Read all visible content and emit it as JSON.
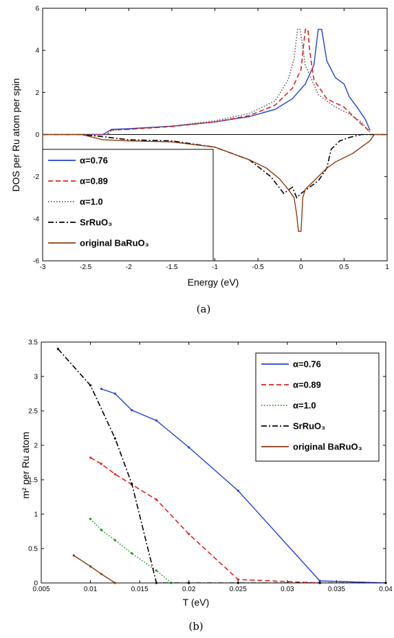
{
  "chart_data": [
    {
      "type": "line",
      "panel": "(a)",
      "xlabel": "Energy (eV)",
      "ylabel": "DOS per Ru atom per spin",
      "xlim": [
        -3,
        1
      ],
      "ylim": [
        -6,
        6
      ],
      "xticks": [
        -3,
        -2.5,
        -2,
        -1.5,
        -1,
        -0.5,
        0,
        0.5,
        1
      ],
      "xtick_labels": [
        "-3",
        "-2.5",
        "-2",
        "-1.5",
        "-1",
        "-0.5",
        "0",
        "0.5",
        "1"
      ],
      "yticks": [
        -6,
        -4,
        -2,
        0,
        2,
        4,
        6
      ],
      "ytick_labels": [
        "-6",
        "-4",
        "-2",
        "0",
        "2",
        "4",
        "6"
      ],
      "grid": false,
      "legend": "bottom-left",
      "zero_line": true,
      "series": [
        {
          "name": "α=0.76",
          "color": "#1f3fd0",
          "style": "solid",
          "x": [
            -2.55,
            -2.3,
            -2.2,
            -2.0,
            -1.5,
            -1.0,
            -0.6,
            -0.3,
            -0.1,
            0.05,
            0.15,
            0.2,
            0.24,
            0.3,
            0.4,
            0.5,
            0.56,
            0.65,
            0.75,
            0.8
          ],
          "y": [
            0,
            0,
            0.25,
            0.28,
            0.4,
            0.6,
            0.85,
            1.2,
            1.7,
            2.4,
            3.3,
            5.0,
            5.0,
            3.5,
            2.7,
            2.4,
            1.8,
            1.3,
            0.7,
            0.2
          ]
        },
        {
          "name": "α=0.89",
          "color": "#e02020",
          "style": "dashed",
          "x": [
            -2.55,
            -2.25,
            -2.2,
            -2.0,
            -1.5,
            -1.0,
            -0.6,
            -0.3,
            -0.1,
            0.0,
            0.05,
            0.08,
            0.1,
            0.15,
            0.3,
            0.5,
            0.6,
            0.7,
            0.8
          ],
          "y": [
            0,
            0,
            0.22,
            0.25,
            0.38,
            0.6,
            0.9,
            1.4,
            2.2,
            3.1,
            5.0,
            5.0,
            4.0,
            2.6,
            1.7,
            1.3,
            0.9,
            0.5,
            0.15
          ]
        },
        {
          "name": "α=1.0",
          "color": "#555555",
          "style": "dotted",
          "x": [
            -2.55,
            -2.25,
            -2.2,
            -2.0,
            -1.5,
            -1.0,
            -0.6,
            -0.3,
            -0.15,
            -0.08,
            -0.04,
            -0.01,
            0.05,
            0.2,
            0.4,
            0.55,
            0.7,
            0.8
          ],
          "y": [
            0,
            0,
            0.2,
            0.25,
            0.4,
            0.65,
            1.0,
            1.6,
            2.6,
            3.6,
            5.0,
            5.0,
            3.3,
            1.9,
            1.3,
            1.0,
            0.6,
            0.1
          ]
        },
        {
          "name": "SrRuO₃",
          "color": "#000000",
          "style": "dashdot",
          "x": [
            -3.0,
            -2.55,
            -2.3,
            -2.0,
            -1.5,
            -1.0,
            -0.6,
            -0.35,
            -0.2,
            -0.1,
            -0.05,
            0.0,
            0.1,
            0.2,
            0.3,
            0.35,
            0.4,
            0.45,
            0.55,
            0.7,
            0.8,
            1.0
          ],
          "y": [
            0,
            0,
            -0.1,
            -0.25,
            -0.3,
            -0.6,
            -1.2,
            -2.0,
            -2.8,
            -2.5,
            -3.0,
            -2.8,
            -2.5,
            -2.2,
            -1.6,
            -0.7,
            -0.5,
            -0.3,
            -0.15,
            0,
            0,
            0
          ]
        },
        {
          "name": "original BaRuO₃",
          "color": "#8b3a10",
          "style": "solid",
          "x": [
            -3.0,
            -2.55,
            -2.3,
            -2.0,
            -1.5,
            -1.0,
            -0.8,
            -0.6,
            -0.4,
            -0.25,
            -0.15,
            -0.08,
            -0.05,
            -0.03,
            0.0,
            0.02,
            0.05,
            0.15,
            0.3,
            0.4,
            0.5,
            0.6,
            0.7,
            0.8,
            0.85,
            1.0
          ],
          "y": [
            0,
            0,
            -0.25,
            -0.3,
            -0.35,
            -0.6,
            -0.9,
            -1.2,
            -1.6,
            -2.1,
            -2.6,
            -3.0,
            -3.8,
            -4.6,
            -4.6,
            -3.0,
            -2.6,
            -2.2,
            -1.6,
            -1.3,
            -1.1,
            -0.9,
            -0.6,
            -0.3,
            0,
            0
          ]
        }
      ]
    },
    {
      "type": "line",
      "panel": "(b)",
      "xlabel": "T (eV)",
      "ylabel": "m² per Ru atom",
      "xlim": [
        0.005,
        0.04
      ],
      "ylim": [
        0,
        3.5
      ],
      "xticks": [
        0.005,
        0.01,
        0.015,
        0.02,
        0.025,
        0.03,
        0.035,
        0.04
      ],
      "xtick_labels": [
        "0.005",
        "0.01",
        "0.015",
        "0.02",
        "0.025",
        "0.03",
        "0.035",
        "0.04"
      ],
      "yticks": [
        0,
        0.5,
        1,
        1.5,
        2,
        2.5,
        3,
        3.5
      ],
      "ytick_labels": [
        "0",
        "0.5",
        "1",
        "1.5",
        "2",
        "2.5",
        "3",
        "3.5"
      ],
      "grid": false,
      "legend": "top-right",
      "series": [
        {
          "name": "α=0.76",
          "color": "#1f3fd0",
          "style": "solid",
          "x": [
            0.0111,
            0.0125,
            0.0142,
            0.0167,
            0.02,
            0.025,
            0.0333,
            0.04
          ],
          "y": [
            2.82,
            2.75,
            2.51,
            2.36,
            1.97,
            1.34,
            0.03,
            0.0
          ]
        },
        {
          "name": "α=0.89",
          "color": "#e02020",
          "style": "dashed",
          "x": [
            0.01,
            0.0111,
            0.0125,
            0.0142,
            0.0167,
            0.02,
            0.025,
            0.0333
          ],
          "y": [
            1.82,
            1.73,
            1.58,
            1.43,
            1.21,
            0.71,
            0.05,
            0.0
          ]
        },
        {
          "name": "α=1.0",
          "color": "#1a8f1a",
          "style": "dotted",
          "x": [
            0.01,
            0.0111,
            0.0125,
            0.0142,
            0.0167,
            0.0182,
            0.02
          ],
          "y": [
            0.93,
            0.77,
            0.62,
            0.43,
            0.18,
            0.0,
            0.0
          ]
        },
        {
          "name": "SrRuO₃",
          "color": "#000000",
          "style": "dashdot",
          "x": [
            0.0067,
            0.01,
            0.0125,
            0.0142,
            0.0167,
            0.02,
            0.025,
            0.0333,
            0.04
          ],
          "y": [
            3.4,
            2.87,
            2.1,
            1.44,
            0.0,
            0.0,
            0.0,
            0.0,
            0.0
          ]
        },
        {
          "name": "original BaRuO₃",
          "color": "#8b3a10",
          "style": "solid",
          "x": [
            0.0083,
            0.01,
            0.0111,
            0.0125
          ],
          "y": [
            0.4,
            0.24,
            0.13,
            0.0
          ]
        }
      ]
    }
  ]
}
